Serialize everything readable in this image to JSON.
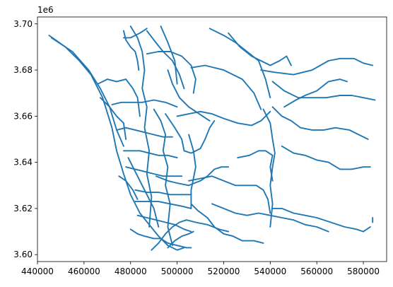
{
  "chart_data": {
    "type": "line",
    "title": "",
    "xlabel": "",
    "ylabel": "",
    "y_offset_label": "1e6",
    "xlim": [
      440000,
      590000
    ],
    "ylim": [
      3597000,
      3703000
    ],
    "x_ticks": [
      440000,
      460000,
      480000,
      500000,
      520000,
      540000,
      560000,
      580000
    ],
    "x_tick_labels": [
      "440000",
      "460000",
      "480000",
      "500000",
      "520000",
      "540000",
      "560000",
      "580000"
    ],
    "y_ticks": [
      3600000,
      3620000,
      3640000,
      3660000,
      3680000,
      3700000
    ],
    "y_tick_labels": [
      "3.60",
      "3.62",
      "3.64",
      "3.66",
      "3.68",
      "3.70"
    ],
    "grid": false,
    "legend": "none",
    "line_color": "#1f77b4",
    "series": [
      {
        "x": [
          445000,
          452000,
          458000,
          463000,
          468000,
          472000,
          474000,
          477000,
          480000,
          484000,
          488000,
          492000,
          496000,
          500000,
          503000
        ],
        "y": [
          3695000,
          3690000,
          3684000,
          3678000,
          3668000,
          3655000,
          3645000,
          3635000,
          3626000,
          3618000,
          3613000,
          3608000,
          3604000,
          3602000,
          3603000
        ]
      },
      {
        "x": [
          446000,
          455000,
          462000,
          467000,
          471000,
          474000,
          477000
        ],
        "y": [
          3694000,
          3688000,
          3680000,
          3672000,
          3664000,
          3654000,
          3647000
        ]
      },
      {
        "x": [
          466000,
          470000,
          474000,
          478000,
          481000,
          483000,
          484000
        ],
        "y": [
          3674000,
          3676000,
          3675000,
          3676000,
          3672000,
          3668000,
          3660000
        ]
      },
      {
        "x": [
          477000,
          478000,
          480000,
          482000,
          483000,
          483500
        ],
        "y": [
          3697000,
          3693000,
          3690000,
          3688000,
          3684000,
          3680000
        ]
      },
      {
        "x": [
          477000,
          480000,
          484000,
          487000,
          487000
        ],
        "y": [
          3694000,
          3694000,
          3696000,
          3698000,
          3698000
        ]
      },
      {
        "x": [
          480000,
          483000,
          485000,
          486000,
          485000,
          487000,
          486000,
          488000,
          487000,
          489000,
          488000
        ],
        "y": [
          3699000,
          3694000,
          3688000,
          3680000,
          3672000,
          3664000,
          3655000,
          3645000,
          3635000,
          3625000,
          3612000
        ]
      },
      {
        "x": [
          487000,
          490000,
          494000,
          498000,
          501000,
          503000
        ],
        "y": [
          3697000,
          3693000,
          3688000,
          3684000,
          3678000,
          3672000
        ]
      },
      {
        "x": [
          487000,
          492000,
          497000,
          502000,
          506000,
          508000,
          507000
        ],
        "y": [
          3687000,
          3688000,
          3688000,
          3686000,
          3682000,
          3676000,
          3670000
        ]
      },
      {
        "x": [
          493000,
          496000,
          499000,
          500000
        ],
        "y": [
          3699000,
          3692000,
          3684000,
          3674000
        ]
      },
      {
        "x": [
          506000,
          512000,
          520000,
          528000,
          533000,
          536000
        ],
        "y": [
          3681000,
          3682000,
          3680000,
          3676000,
          3670000,
          3663000
        ]
      },
      {
        "x": [
          514000,
          520000,
          525000,
          530000,
          535000,
          538000,
          540000
        ],
        "y": [
          3698000,
          3695000,
          3692000,
          3688000,
          3684000,
          3676000,
          3668000
        ]
      },
      {
        "x": [
          522000,
          527000,
          532000,
          536000,
          540000,
          544000,
          547000,
          549000
        ],
        "y": [
          3696000,
          3690000,
          3686000,
          3684000,
          3682000,
          3684000,
          3686000,
          3682000
        ]
      },
      {
        "x": [
          536000,
          542000,
          550000,
          558000,
          565000,
          570000,
          576000,
          580000,
          584000
        ],
        "y": [
          3680000,
          3679000,
          3678000,
          3680000,
          3684000,
          3685000,
          3685000,
          3683000,
          3682000
        ]
      },
      {
        "x": [
          546000,
          551000,
          555000,
          560000,
          565000,
          570000,
          573000
        ],
        "y": [
          3664000,
          3667000,
          3669000,
          3671000,
          3675000,
          3676000,
          3675000
        ]
      },
      {
        "x": [
          541000,
          546000,
          552000,
          558000,
          564000,
          570000,
          575000,
          580000,
          585000
        ],
        "y": [
          3675000,
          3671000,
          3668000,
          3668000,
          3668000,
          3669000,
          3669000,
          3668000,
          3667000
        ]
      },
      {
        "x": [
          541000,
          545000,
          549000,
          553000,
          558000,
          563000,
          568000,
          574000,
          578000,
          582000
        ],
        "y": [
          3664000,
          3660000,
          3658000,
          3655000,
          3654000,
          3654000,
          3655000,
          3654000,
          3652000,
          3650000
        ]
      },
      {
        "x": [
          545000,
          550000,
          555000,
          560000,
          565000,
          570000,
          575000,
          580000,
          583000
        ],
        "y": [
          3647000,
          3644000,
          3643000,
          3641000,
          3640000,
          3637000,
          3637000,
          3638000,
          3638000
        ]
      },
      {
        "x": [
          537000,
          540000,
          541000,
          542000,
          541000,
          540000,
          541000,
          540000
        ],
        "y": [
          3663000,
          3657000,
          3650000,
          3644000,
          3638000,
          3630000,
          3622000,
          3612000
        ]
      },
      {
        "x": [
          541000,
          545000,
          550000,
          555000,
          560000,
          566000,
          572000,
          577000,
          580000,
          583000
        ],
        "y": [
          3620000,
          3620000,
          3618000,
          3617000,
          3616000,
          3614000,
          3612000,
          3611000,
          3610000,
          3612000
        ]
      },
      {
        "x": [
          515000,
          520000,
          525000,
          530000,
          535000,
          540000,
          545000,
          550000,
          555000,
          560000,
          565000
        ],
        "y": [
          3622000,
          3620000,
          3618000,
          3617000,
          3618000,
          3617000,
          3616000,
          3615000,
          3613000,
          3612000,
          3610000
        ]
      },
      {
        "x": [
          526000,
          531000,
          535000,
          538000,
          541000,
          540000,
          541000
        ],
        "y": [
          3642000,
          3643000,
          3645000,
          3645000,
          3643000,
          3638000,
          3632000
        ]
      },
      {
        "x": [
          500000,
          505000,
          510000,
          515000,
          520000,
          526000,
          532000,
          536000,
          540000
        ],
        "y": [
          3660000,
          3661000,
          3662000,
          3661000,
          3659000,
          3657000,
          3656000,
          3658000,
          3662000
        ]
      },
      {
        "x": [
          495000,
          499000,
          502000,
          503000,
          506000,
          510000,
          512000,
          514000,
          516000
        ],
        "y": [
          3661000,
          3655000,
          3650000,
          3645000,
          3644000,
          3646000,
          3650000,
          3655000,
          3658000
        ]
      },
      {
        "x": [
          491000,
          496000,
          500000,
          505000,
          510000,
          513000,
          516000,
          519000,
          522000
        ],
        "y": [
          3634000,
          3632000,
          3631000,
          3630000,
          3632000,
          3634000,
          3637000,
          3638000,
          3638000
        ]
      },
      {
        "x": [
          505000,
          507000,
          508000,
          506000,
          506000
        ],
        "y": [
          3652000,
          3645000,
          3638000,
          3628000,
          3620000
        ]
      },
      {
        "x": [
          505000,
          510000,
          515000,
          520000,
          525000,
          530000,
          534000,
          537000,
          539000,
          540000
        ],
        "y": [
          3632000,
          3633000,
          3634000,
          3632000,
          3630000,
          3630000,
          3630000,
          3628000,
          3624000,
          3618000
        ]
      },
      {
        "x": [
          506000,
          509000,
          513000,
          516000,
          520000,
          524000,
          528000,
          533000,
          537000
        ],
        "y": [
          3622000,
          3619000,
          3616000,
          3612000,
          3609000,
          3608000,
          3606000,
          3606000,
          3605000
        ]
      },
      {
        "x": [
          482000,
          487000,
          492000,
          497000,
          502000,
          506000
        ],
        "y": [
          3623000,
          3623000,
          3623000,
          3622000,
          3621000,
          3620000
        ]
      },
      {
        "x": [
          482000,
          487000,
          492000,
          497000,
          502000,
          506000
        ],
        "y": [
          3628000,
          3627000,
          3627000,
          3626000,
          3626000,
          3626000
        ]
      },
      {
        "x": [
          483000,
          487000,
          491000,
          495000,
          499000,
          503000,
          506000
        ],
        "y": [
          3617000,
          3616000,
          3615000,
          3614000,
          3613000,
          3611000,
          3610000
        ]
      },
      {
        "x": [
          489000,
          492000,
          495000,
          498000,
          501000,
          504000,
          508000,
          513000,
          518000,
          522000
        ],
        "y": [
          3602000,
          3605000,
          3609000,
          3612000,
          3614000,
          3615000,
          3614000,
          3613000,
          3611000,
          3610000
        ]
      },
      {
        "x": [
          496000,
          499000,
          502000,
          505000,
          507000
        ],
        "y": [
          3603000,
          3606000,
          3608000,
          3609000,
          3610000
        ]
      },
      {
        "x": [
          472000,
          476000,
          480000,
          485000,
          490000,
          495000,
          500000
        ],
        "y": [
          3665000,
          3666000,
          3666000,
          3666000,
          3667000,
          3666000,
          3664000
        ]
      },
      {
        "x": [
          474000,
          478000,
          482000,
          486000,
          490000,
          494000,
          498000
        ],
        "y": [
          3654000,
          3655000,
          3654000,
          3653000,
          3652000,
          3651000,
          3651000
        ]
      },
      {
        "x": [
          477000,
          480000,
          484000,
          488000,
          492000,
          496000,
          500000
        ],
        "y": [
          3645000,
          3645000,
          3645000,
          3644000,
          3643000,
          3643000,
          3642000
        ]
      },
      {
        "x": [
          478000,
          482000,
          486000,
          490000,
          494000,
          498000,
          502000
        ],
        "y": [
          3638000,
          3637000,
          3636000,
          3635000,
          3634000,
          3634000,
          3634000
        ]
      },
      {
        "x": [
          490000,
          493000,
          495000,
          494000,
          496000,
          495000,
          497000,
          496000,
          498000
        ],
        "y": [
          3663000,
          3658000,
          3652000,
          3645000,
          3638000,
          3630000,
          3622000,
          3612000,
          3604000
        ]
      },
      {
        "x": [
          479000,
          481000,
          484000,
          487000,
          490000,
          492000
        ],
        "y": [
          3642000,
          3638000,
          3632000,
          3626000,
          3620000,
          3612000
        ]
      },
      {
        "x": [
          467000,
          471000,
          474000,
          477000,
          478000
        ],
        "y": [
          3668000,
          3664000,
          3660000,
          3657000,
          3650000
        ]
      },
      {
        "x": [
          475000,
          478000,
          481000,
          483000
        ],
        "y": [
          3634000,
          3632000,
          3628000,
          3624000
        ]
      },
      {
        "x": [
          480000,
          483000,
          486000,
          490000,
          493000,
          496000,
          500000,
          504000,
          506000
        ],
        "y": [
          3611000,
          3609000,
          3608000,
          3607000,
          3607000,
          3605000,
          3604000,
          3603000,
          3603000
        ]
      },
      {
        "x": [
          496000,
          498000,
          501000,
          505000,
          508000,
          511000,
          514000
        ],
        "y": [
          3680000,
          3674000,
          3668000,
          3664000,
          3662000,
          3660000,
          3658000
        ]
      },
      {
        "x": [
          584000,
          584000
        ],
        "y": [
          3616000,
          3614000
        ]
      }
    ]
  }
}
